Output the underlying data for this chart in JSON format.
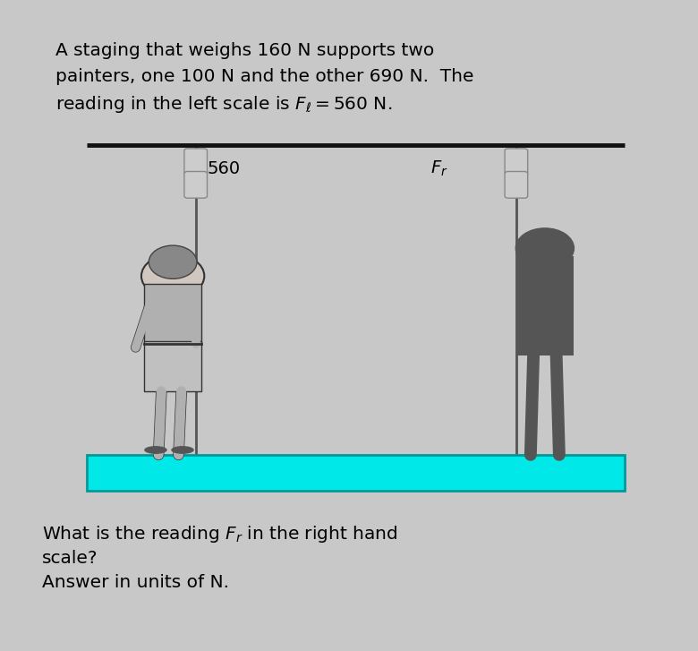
{
  "bg_color": "#c8c8c8",
  "title_line1": "A staging that weighs 160 N supports two",
  "title_line2": "painters, one 100 N and the other 690 N.  The",
  "title_line3": "reading in the left scale is $F_\\ell = 560$ N.",
  "question_line1": "What is the reading $F_r$ in the right hand",
  "question_line2": "scale?",
  "question_line3": "Answer in units of N.",
  "title_fontsize": 14.5,
  "question_fontsize": 14.5,
  "board_color": "#00e8e8",
  "board_edge_color": "#009999",
  "rope_color": "#555555",
  "top_bar_color": "#111111",
  "scale_color": "#cccccc",
  "scale_edge": "#888888",
  "left_painter_body": "#aaaaaa",
  "left_painter_outline": "#333333",
  "right_painter_color": "#555555",
  "label_560": "560",
  "label_Fr": "$F_r$",
  "label_fontsize": 14
}
